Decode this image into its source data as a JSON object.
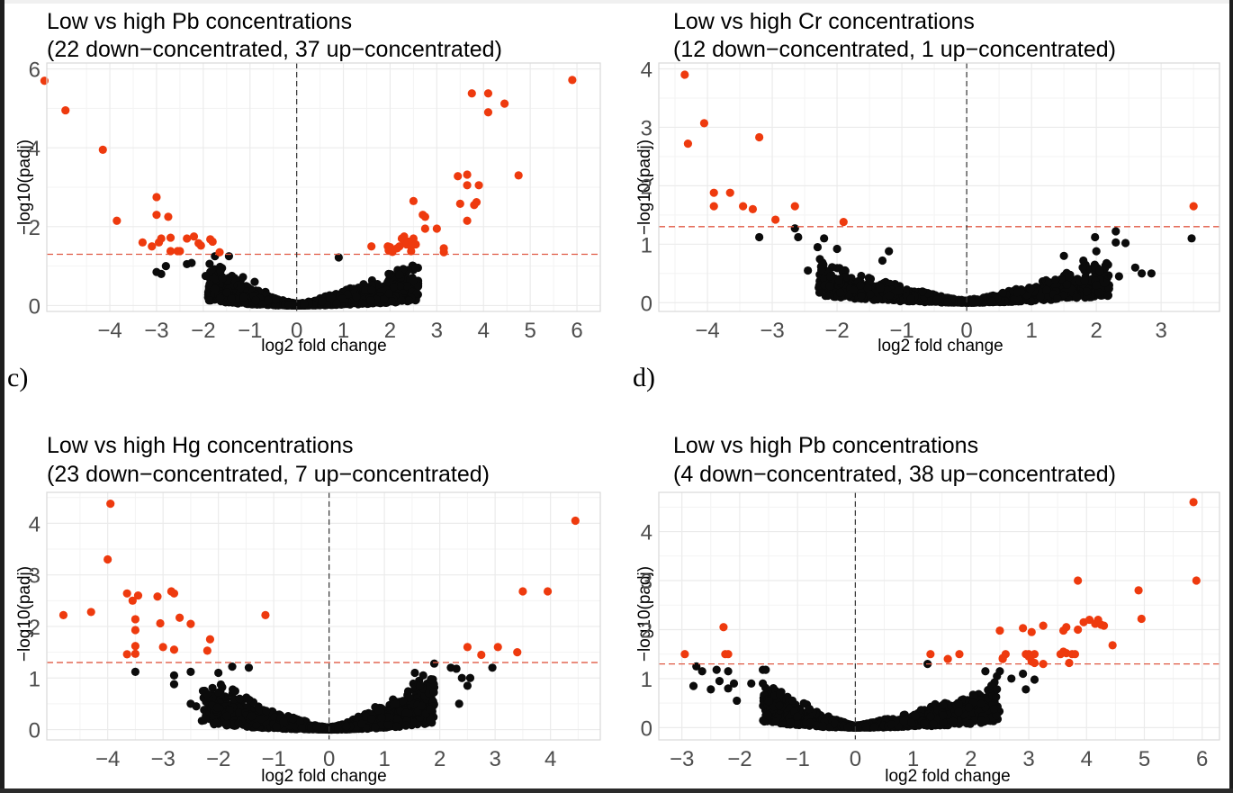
{
  "figure": {
    "panel_labels": {
      "c": "c)",
      "d": "d)"
    }
  },
  "colors": {
    "significant": "#ee3a0e",
    "not_significant": "#0b0b0b",
    "threshold_line": "#e05a44",
    "zero_line": "#333333",
    "grid": "#ebebeb",
    "panel_border": "#d9d9d9",
    "tick_text": "#4d4d4d"
  },
  "chart_data": [
    {
      "id": "a",
      "type": "scatter",
      "title_line1": "Low vs high Pb concentrations",
      "title_line2": "(22 down−concentrated, 37 up−concentrated)",
      "xlabel": "log2 fold change",
      "ylabel": "−log10(padj)",
      "xlim": [
        -5.35,
        6.5
      ],
      "ylim": [
        -0.15,
        6.15
      ],
      "xticks": [
        -4,
        -3,
        -2,
        -1,
        0,
        1,
        2,
        3,
        4,
        5,
        6
      ],
      "xtick_labels": [
        "−4",
        "−3",
        "−2",
        "−1",
        "0",
        "1",
        "2",
        "3",
        "4",
        "5",
        "6"
      ],
      "yticks": [
        0,
        2,
        4,
        6
      ],
      "ytick_labels": [
        "0",
        "2",
        "4",
        "6"
      ],
      "threshold_y": 1.3,
      "vline_x": 0,
      "grid": true,
      "significant_points": [
        [
          -5.4,
          5.7
        ],
        [
          -4.95,
          4.95
        ],
        [
          -4.15,
          3.95
        ],
        [
          -3.85,
          2.15
        ],
        [
          -3.0,
          2.75
        ],
        [
          -3.0,
          2.3
        ],
        [
          -2.75,
          2.25
        ],
        [
          -3.3,
          1.6
        ],
        [
          -3.1,
          1.5
        ],
        [
          -2.95,
          1.6
        ],
        [
          -2.9,
          1.7
        ],
        [
          -2.7,
          1.72
        ],
        [
          -2.7,
          1.38
        ],
        [
          -2.55,
          1.38
        ],
        [
          -2.5,
          1.38
        ],
        [
          -2.35,
          1.7
        ],
        [
          -2.2,
          1.75
        ],
        [
          -2.1,
          1.58
        ],
        [
          -2.05,
          1.52
        ],
        [
          -1.85,
          1.68
        ],
        [
          -1.8,
          1.62
        ],
        [
          -1.65,
          1.35
        ],
        [
          5.9,
          5.72
        ],
        [
          3.75,
          5.38
        ],
        [
          4.1,
          5.38
        ],
        [
          4.45,
          5.12
        ],
        [
          4.1,
          4.9
        ],
        [
          4.75,
          3.3
        ],
        [
          3.45,
          3.28
        ],
        [
          3.65,
          3.32
        ],
        [
          3.65,
          3.05
        ],
        [
          3.9,
          3.05
        ],
        [
          3.5,
          2.58
        ],
        [
          3.8,
          2.55
        ],
        [
          3.85,
          2.62
        ],
        [
          3.65,
          2.15
        ],
        [
          2.5,
          2.65
        ],
        [
          2.7,
          2.3
        ],
        [
          2.75,
          2.25
        ],
        [
          2.75,
          1.95
        ],
        [
          3.0,
          1.95
        ],
        [
          3.15,
          1.45
        ],
        [
          3.15,
          1.35
        ],
        [
          1.6,
          1.5
        ],
        [
          1.95,
          1.5
        ],
        [
          1.97,
          1.4
        ],
        [
          2.05,
          1.36
        ],
        [
          2.25,
          1.7
        ],
        [
          2.3,
          1.6
        ],
        [
          2.35,
          1.55
        ],
        [
          2.4,
          1.62
        ],
        [
          2.5,
          1.7
        ],
        [
          2.55,
          1.55
        ],
        [
          2.45,
          1.38
        ],
        [
          2.2,
          1.5
        ],
        [
          2.15,
          1.45
        ],
        [
          2.3,
          1.75
        ],
        [
          2.0,
          1.48
        ],
        [
          2.45,
          1.5
        ]
      ],
      "notable_nonsig_points": [
        [
          -3.0,
          0.85
        ],
        [
          -2.9,
          0.8
        ],
        [
          -2.8,
          1.0
        ],
        [
          -2.35,
          1.05
        ],
        [
          -2.25,
          1.08
        ],
        [
          -1.95,
          0.75
        ],
        [
          -1.75,
          1.25
        ],
        [
          -1.45,
          1.25
        ],
        [
          -1.15,
          0.72
        ],
        [
          -0.9,
          0.6
        ],
        [
          0.9,
          1.22
        ],
        [
          2.6,
          0.5
        ],
        [
          2.5,
          0.65
        ],
        [
          2.55,
          0.95
        ],
        [
          2.2,
          0.78
        ]
      ],
      "nonsig_cloud": {
        "n": 1400,
        "x_range": [
          -1.9,
          2.6
        ],
        "max_y_at_edge": 1.25
      }
    },
    {
      "id": "b",
      "type": "scatter",
      "title_line1": "Low vs high Cr concentrations",
      "title_line2": "(12 down−concentrated, 1 up−concentrated)",
      "xlabel": "log2 fold change",
      "ylabel": "−log10(padj)",
      "xlim": [
        -4.75,
        3.9
      ],
      "ylim": [
        -0.15,
        4.1
      ],
      "xticks": [
        -4,
        -3,
        -2,
        -1,
        0,
        1,
        2,
        3
      ],
      "xtick_labels": [
        "−4",
        "−3",
        "−2",
        "−1",
        "0",
        "1",
        "2",
        "3"
      ],
      "yticks": [
        0,
        1,
        2,
        3,
        4
      ],
      "ytick_labels": [
        "0",
        "1",
        "2",
        "3",
        "4"
      ],
      "threshold_y": 1.3,
      "vline_x": 0,
      "grid": true,
      "significant_points": [
        [
          -4.35,
          3.9
        ],
        [
          -4.3,
          2.72
        ],
        [
          -4.05,
          3.07
        ],
        [
          -3.2,
          2.83
        ],
        [
          -3.9,
          1.88
        ],
        [
          -3.9,
          1.65
        ],
        [
          -3.65,
          1.88
        ],
        [
          -3.45,
          1.65
        ],
        [
          -3.3,
          1.6
        ],
        [
          -2.95,
          1.42
        ],
        [
          -2.65,
          1.65
        ],
        [
          -1.9,
          1.38
        ],
        [
          3.5,
          1.65
        ]
      ],
      "notable_nonsig_points": [
        [
          -3.2,
          1.12
        ],
        [
          -2.65,
          1.27
        ],
        [
          -2.6,
          1.12
        ],
        [
          -2.2,
          1.1
        ],
        [
          -2.3,
          0.95
        ],
        [
          -2.0,
          0.92
        ],
        [
          -1.2,
          0.88
        ],
        [
          -1.3,
          0.72
        ],
        [
          -2.45,
          0.55
        ],
        [
          1.98,
          1.12
        ],
        [
          2.0,
          0.88
        ],
        [
          2.3,
          1.22
        ],
        [
          2.3,
          1.03
        ],
        [
          2.45,
          1.02
        ],
        [
          3.47,
          1.1
        ],
        [
          2.85,
          0.5
        ],
        [
          2.7,
          0.5
        ],
        [
          2.6,
          0.6
        ],
        [
          2.35,
          0.45
        ],
        [
          1.5,
          0.8
        ],
        [
          1.8,
          0.72
        ],
        [
          2.05,
          0.55
        ],
        [
          2.0,
          0.3
        ]
      ],
      "nonsig_cloud": {
        "n": 1300,
        "x_range": [
          -2.3,
          2.2
        ],
        "max_y_at_edge": 0.8
      }
    },
    {
      "id": "c",
      "type": "scatter",
      "title_line1": "Low vs high Hg concentrations",
      "title_line2": "(23 down−concentrated, 7 up−concentrated)",
      "xlabel": "log2 fold change",
      "ylabel": "−log10(padj)",
      "xlim": [
        -5.1,
        4.9
      ],
      "ylim": [
        -0.2,
        4.6
      ],
      "xticks": [
        -4,
        -3,
        -2,
        -1,
        0,
        1,
        2,
        3,
        4
      ],
      "xtick_labels": [
        "−4",
        "−3",
        "−2",
        "−1",
        "0",
        "1",
        "2",
        "3",
        "4"
      ],
      "yticks": [
        0,
        1,
        2,
        3,
        4
      ],
      "ytick_labels": [
        "0",
        "1",
        "2",
        "3",
        "4"
      ],
      "threshold_y": 1.3,
      "vline_x": 0,
      "grid": true,
      "significant_points": [
        [
          -3.95,
          4.38
        ],
        [
          -4.0,
          3.3
        ],
        [
          -4.8,
          2.22
        ],
        [
          -4.3,
          2.28
        ],
        [
          -3.65,
          2.64
        ],
        [
          -3.55,
          2.5
        ],
        [
          -3.45,
          2.6
        ],
        [
          -3.1,
          2.58
        ],
        [
          -2.85,
          2.68
        ],
        [
          -2.8,
          2.64
        ],
        [
          -3.05,
          2.06
        ],
        [
          -2.7,
          2.17
        ],
        [
          -2.5,
          2.05
        ],
        [
          -3.5,
          2.14
        ],
        [
          -3.5,
          1.93
        ],
        [
          -3.5,
          1.62
        ],
        [
          -3.5,
          1.47
        ],
        [
          -3.65,
          1.46
        ],
        [
          -3.0,
          1.6
        ],
        [
          -2.8,
          1.55
        ],
        [
          -2.15,
          1.75
        ],
        [
          -2.2,
          1.53
        ],
        [
          -1.15,
          2.22
        ],
        [
          4.45,
          4.05
        ],
        [
          3.5,
          2.68
        ],
        [
          3.95,
          2.68
        ],
        [
          2.5,
          1.6
        ],
        [
          2.75,
          1.45
        ],
        [
          3.05,
          1.6
        ],
        [
          3.4,
          1.5
        ]
      ],
      "notable_nonsig_points": [
        [
          -3.5,
          1.12
        ],
        [
          -2.8,
          1.05
        ],
        [
          -2.8,
          0.88
        ],
        [
          -2.5,
          1.12
        ],
        [
          -2.0,
          1.1
        ],
        [
          -1.75,
          1.22
        ],
        [
          -1.45,
          1.2
        ],
        [
          -2.5,
          0.5
        ],
        [
          -2.4,
          0.45
        ],
        [
          1.9,
          1.28
        ],
        [
          2.2,
          1.2
        ],
        [
          2.3,
          1.18
        ],
        [
          2.4,
          1.0
        ],
        [
          2.55,
          1.0
        ],
        [
          2.5,
          0.85
        ],
        [
          2.35,
          0.5
        ],
        [
          2.95,
          1.2
        ],
        [
          1.55,
          1.1
        ],
        [
          1.7,
          1.05
        ]
      ],
      "nonsig_cloud": {
        "n": 1400,
        "x_range": [
          -2.3,
          1.9
        ],
        "max_y_at_edge": 1.15
      }
    },
    {
      "id": "d",
      "type": "scatter",
      "title_line1": "Low vs high Pb concentrations",
      "title_line2": "(4 down−concentrated, 38 up−concentrated)",
      "xlabel": "log2 fold change",
      "ylabel": "−log10(padj)",
      "xlim": [
        -3.4,
        6.3
      ],
      "ylim": [
        -0.25,
        4.8
      ],
      "xticks": [
        -3,
        -2,
        -1,
        0,
        1,
        2,
        3,
        4,
        5,
        6
      ],
      "xtick_labels": [
        "−3",
        "−2",
        "−1",
        "0",
        "1",
        "2",
        "3",
        "4",
        "5",
        "6"
      ],
      "yticks": [
        0,
        1,
        2,
        3,
        4
      ],
      "ytick_labels": [
        "0",
        "1",
        "2",
        "3",
        "4"
      ],
      "threshold_y": 1.3,
      "vline_x": 0,
      "grid": true,
      "significant_points": [
        [
          -2.95,
          1.5
        ],
        [
          -2.28,
          2.05
        ],
        [
          -2.25,
          1.5
        ],
        [
          -2.2,
          1.5
        ],
        [
          5.85,
          4.6
        ],
        [
          5.9,
          3.0
        ],
        [
          3.85,
          3.0
        ],
        [
          4.9,
          2.8
        ],
        [
          4.95,
          2.22
        ],
        [
          2.5,
          1.98
        ],
        [
          2.9,
          2.03
        ],
        [
          3.05,
          1.95
        ],
        [
          3.25,
          2.08
        ],
        [
          3.6,
          1.98
        ],
        [
          3.65,
          2.05
        ],
        [
          3.85,
          2.0
        ],
        [
          3.95,
          2.15
        ],
        [
          4.05,
          2.2
        ],
        [
          4.2,
          2.2
        ],
        [
          4.25,
          2.1
        ],
        [
          4.3,
          2.08
        ],
        [
          4.45,
          1.68
        ],
        [
          1.3,
          1.5
        ],
        [
          1.6,
          1.4
        ],
        [
          1.8,
          1.5
        ],
        [
          2.55,
          1.42
        ],
        [
          2.6,
          1.5
        ],
        [
          2.95,
          1.5
        ],
        [
          3.0,
          1.5
        ],
        [
          3.1,
          1.5
        ],
        [
          3.05,
          1.35
        ],
        [
          3.25,
          1.3
        ],
        [
          3.55,
          1.5
        ],
        [
          3.65,
          1.52
        ],
        [
          3.75,
          1.5
        ],
        [
          3.7,
          1.32
        ],
        [
          3.8,
          1.5
        ],
        [
          3.0,
          1.45
        ],
        [
          3.6,
          1.55
        ],
        [
          4.15,
          2.12
        ],
        [
          3.1,
          1.32
        ],
        [
          2.55,
          1.4
        ]
      ],
      "notable_nonsig_points": [
        [
          -2.75,
          1.25
        ],
        [
          -2.65,
          1.15
        ],
        [
          -2.8,
          0.85
        ],
        [
          -2.4,
          1.18
        ],
        [
          -2.35,
          0.95
        ],
        [
          -2.2,
          1.15
        ],
        [
          -2.2,
          0.8
        ],
        [
          -2.1,
          0.9
        ],
        [
          -2.05,
          0.55
        ],
        [
          -1.8,
          0.9
        ],
        [
          -1.6,
          1.18
        ],
        [
          -1.55,
          1.18
        ],
        [
          -1.6,
          0.9
        ],
        [
          -2.5,
          0.78
        ],
        [
          1.25,
          1.3
        ],
        [
          2.4,
          0.38
        ],
        [
          2.5,
          1.15
        ],
        [
          2.7,
          1.0
        ],
        [
          2.9,
          1.1
        ],
        [
          2.95,
          0.78
        ],
        [
          3.1,
          0.98
        ],
        [
          2.25,
          1.15
        ],
        [
          2.45,
          1.05
        ]
      ],
      "nonsig_cloud": {
        "n": 1300,
        "x_range": [
          -1.6,
          2.5
        ],
        "max_y_at_edge": 1.0
      }
    }
  ]
}
